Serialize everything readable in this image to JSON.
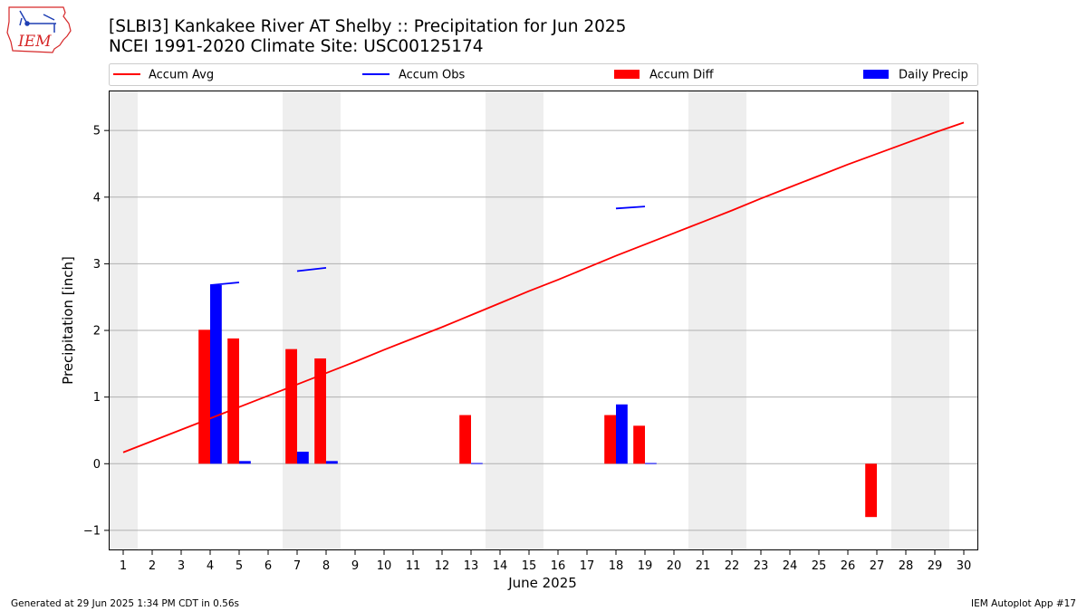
{
  "header": {
    "title_line1": "[SLBI3] Kankakee River  AT Shelby :: Precipitation for Jun 2025",
    "title_line2": "NCEI 1991-2020 Climate Site: USC00125174"
  },
  "logo": {
    "text": "IEM"
  },
  "footer": {
    "generated": "Generated at 29 Jun 2025 1:34 PM CDT in 0.56s",
    "app": "IEM Autoplot App #17"
  },
  "colors": {
    "accum_avg": "#ff0000",
    "accum_obs": "#0000ff",
    "accum_diff": "#ff0000",
    "daily_precip": "#0000ff",
    "weekend_band": "#eeeeee",
    "grid": "#b0b0b0"
  },
  "chart_data": {
    "type": "bar",
    "xlabel": "June 2025",
    "ylabel": "Precipitation [inch]",
    "xlim": [
      0.5,
      30.5
    ],
    "ylim": [
      -1.3,
      5.6
    ],
    "yticks": [
      -1,
      0,
      1,
      2,
      3,
      4,
      5
    ],
    "ytick_labels": [
      "−1",
      "0",
      "1",
      "2",
      "3",
      "4",
      "5"
    ],
    "days": [
      1,
      2,
      3,
      4,
      5,
      6,
      7,
      8,
      9,
      10,
      11,
      12,
      13,
      14,
      15,
      16,
      17,
      18,
      19,
      20,
      21,
      22,
      23,
      24,
      25,
      26,
      27,
      28,
      29,
      30
    ],
    "day_labels": [
      "1",
      "2",
      "3",
      "4",
      "5",
      "6",
      "7",
      "8",
      "9",
      "10",
      "11",
      "12",
      "13",
      "14",
      "15",
      "16",
      "17",
      "18",
      "19",
      "20",
      "21",
      "22",
      "23",
      "24",
      "25",
      "26",
      "27",
      "28",
      "29",
      "30"
    ],
    "weekend_bands": [
      [
        0.5,
        1.5
      ],
      [
        6.5,
        8.5
      ],
      [
        13.5,
        15.5
      ],
      [
        20.5,
        22.5
      ],
      [
        27.5,
        29.5
      ]
    ],
    "grid": "y",
    "legend_position": "top",
    "series": [
      {
        "name": "Accum Avg",
        "kind": "line",
        "x": [
          1,
          2,
          3,
          4,
          5,
          6,
          7,
          8,
          9,
          10,
          11,
          12,
          13,
          14,
          15,
          16,
          17,
          18,
          19,
          20,
          21,
          22,
          23,
          24,
          25,
          26,
          27,
          28,
          29,
          30
        ],
        "values": [
          0.17,
          0.34,
          0.51,
          0.68,
          0.85,
          1.02,
          1.19,
          1.36,
          1.53,
          1.71,
          1.88,
          2.05,
          2.23,
          2.41,
          2.59,
          2.76,
          2.94,
          3.12,
          3.29,
          3.46,
          3.63,
          3.8,
          3.98,
          4.15,
          4.32,
          4.49,
          4.65,
          4.81,
          4.97,
          5.12
        ]
      },
      {
        "name": "Accum Obs",
        "kind": "segments",
        "segments": [
          {
            "x": [
              4,
              5
            ],
            "values": [
              2.68,
              2.72
            ]
          },
          {
            "x": [
              7,
              8
            ],
            "values": [
              2.89,
              2.94
            ]
          },
          {
            "x": [
              18,
              19
            ],
            "values": [
              3.83,
              3.86
            ]
          }
        ]
      },
      {
        "name": "Accum Diff",
        "kind": "bar",
        "x": [
          4,
          5,
          7,
          8,
          13,
          18,
          19,
          27
        ],
        "values": [
          2.01,
          1.88,
          1.72,
          1.58,
          0.73,
          0.73,
          0.57,
          -0.8
        ]
      },
      {
        "name": "Daily Precip",
        "kind": "bar",
        "x": [
          4,
          5,
          7,
          8,
          13,
          18,
          19
        ],
        "values": [
          2.68,
          0.04,
          0.18,
          0.04,
          0.01,
          0.89,
          0.01
        ]
      }
    ]
  }
}
